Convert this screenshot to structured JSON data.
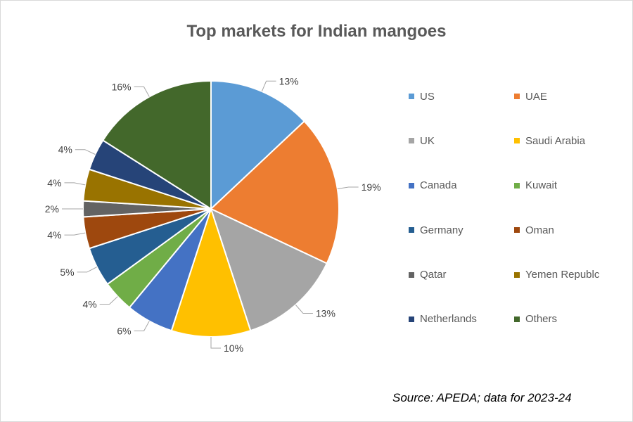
{
  "chart_data": {
    "type": "pie",
    "title": "Top markets for Indian mangoes",
    "categories": [
      "US",
      "UAE",
      "UK",
      "Saudi Arabia",
      "Canada",
      "Kuwait",
      "Germany",
      "Oman",
      "Qatar",
      "Yemen Republc",
      "Netherlands",
      "Others"
    ],
    "values": [
      13,
      19,
      13,
      10,
      6,
      4,
      5,
      4,
      2,
      4,
      4,
      16
    ],
    "labels": [
      "13%",
      "19%",
      "13%",
      "10%",
      "6%",
      "4%",
      "5%",
      "4%",
      "2%",
      "4%",
      "4%",
      "16%"
    ],
    "colors": [
      "#5b9bd5",
      "#ed7d31",
      "#a5a5a5",
      "#ffc000",
      "#4472c4",
      "#70ad47",
      "#255e91",
      "#9e480e",
      "#636363",
      "#997300",
      "#264478",
      "#43682b"
    ],
    "legend_position": "right"
  },
  "source_note": "Source: APEDA; data for 2023-24"
}
